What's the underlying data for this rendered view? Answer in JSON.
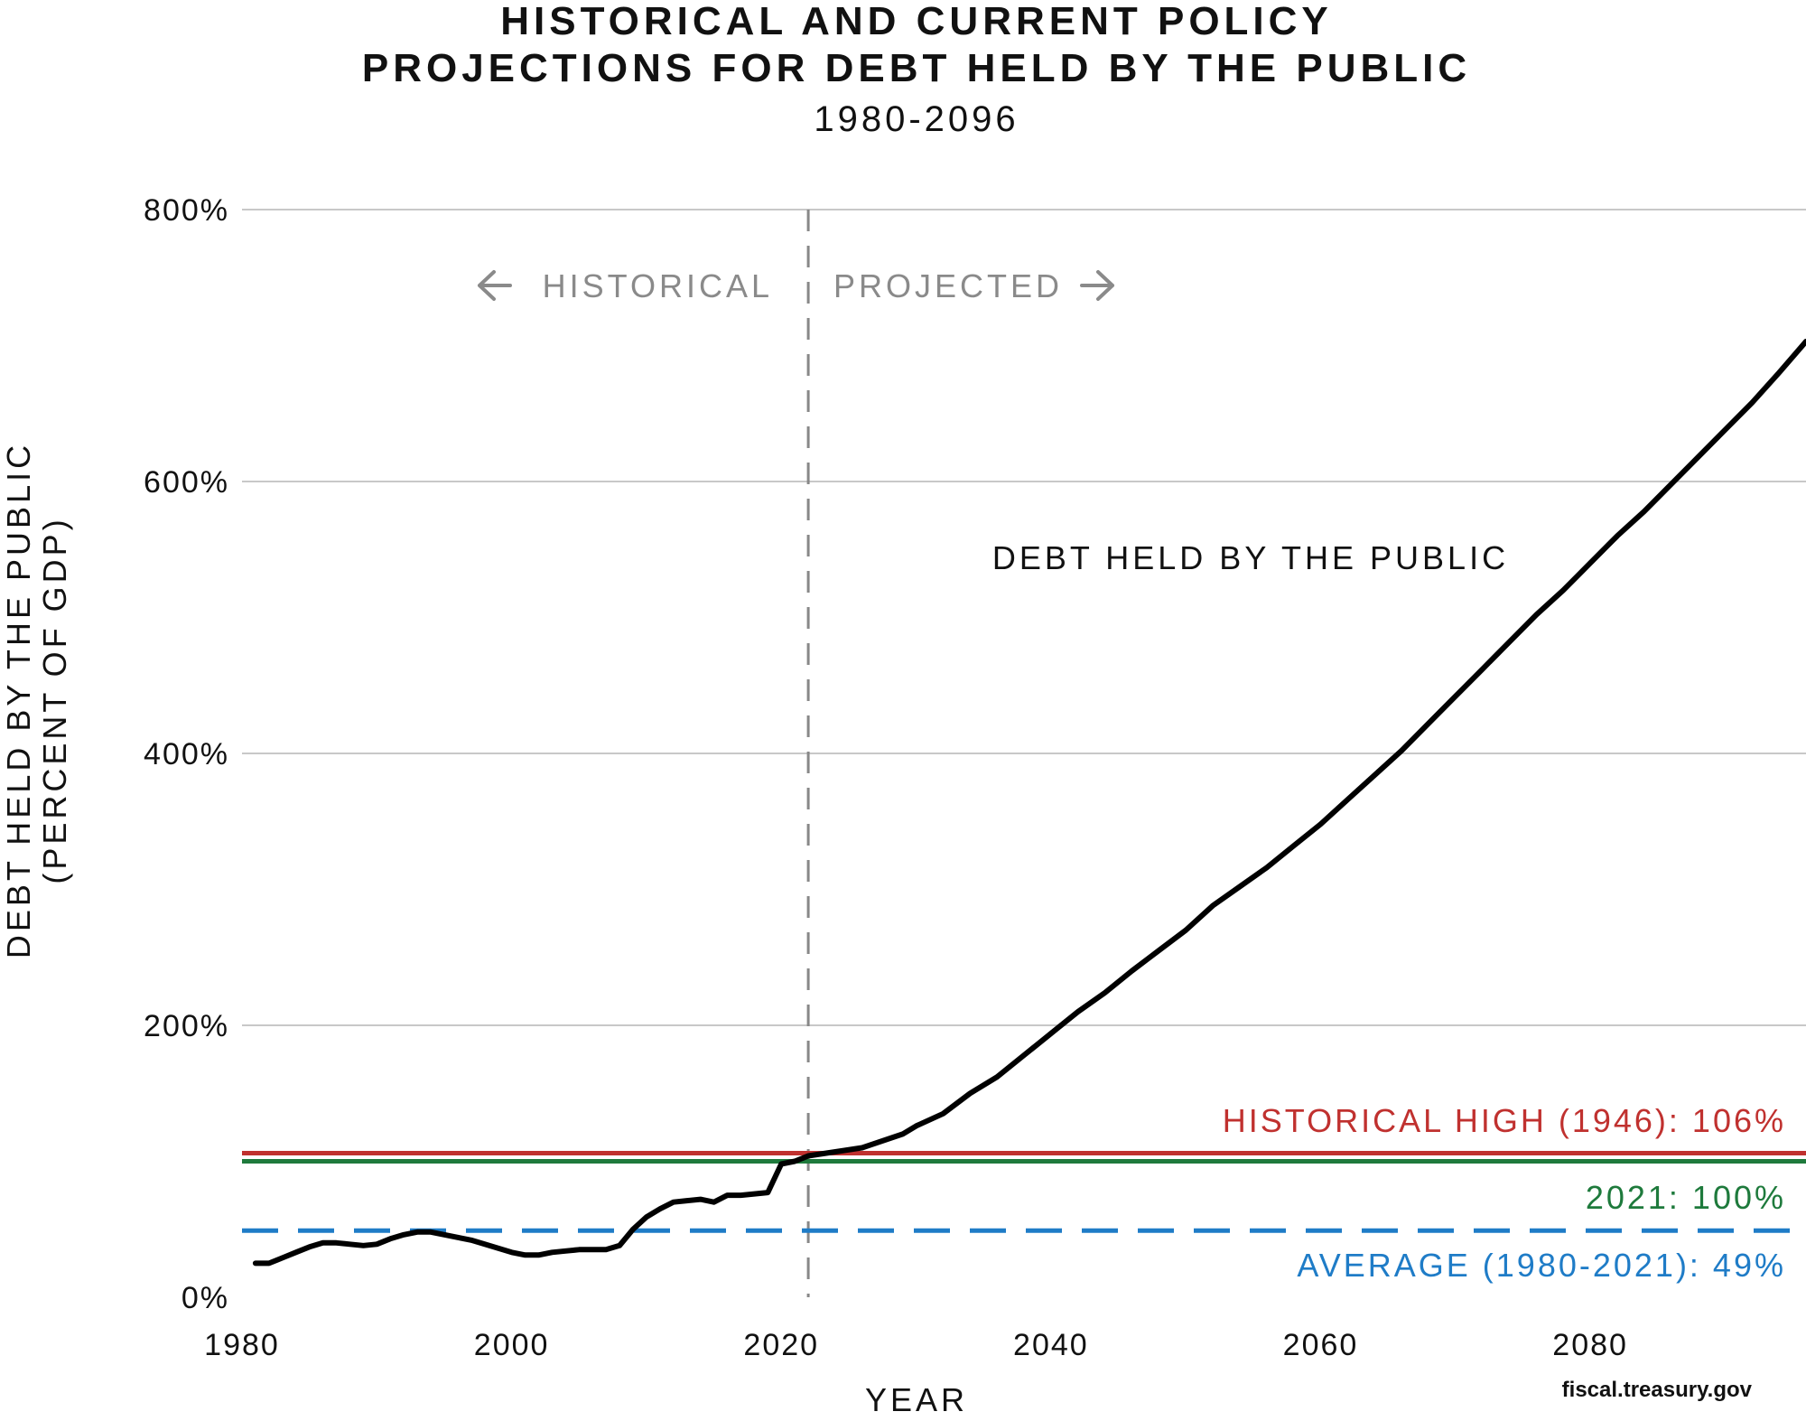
{
  "chart_data": {
    "type": "line",
    "title_line1": "HISTORICAL AND CURRENT POLICY",
    "title_line2": "PROJECTIONS FOR DEBT HELD BY THE PUBLIC",
    "subtitle": "1980-2096",
    "ylabel_line1": "DEBT HELD BY THE PUBLIC",
    "ylabel_line2": "(PERCENT OF GDP)",
    "xlabel": "YEAR",
    "xlim": [
      1980,
      2096
    ],
    "ylim": [
      0,
      800
    ],
    "x_ticks": [
      1980,
      2000,
      2020,
      2040,
      2060,
      2080
    ],
    "y_ticks": [
      {
        "value": 0,
        "label": "0%"
      },
      {
        "value": 200,
        "label": "200%"
      },
      {
        "value": 400,
        "label": "400%"
      },
      {
        "value": 600,
        "label": "600%"
      },
      {
        "value": 800,
        "label": "800%"
      }
    ],
    "grid": true,
    "divider": {
      "x": 2022,
      "left_label": "HISTORICAL",
      "right_label": "PROJECTED",
      "color": "#888888"
    },
    "series": [
      {
        "name": "DEBT HELD BY THE PUBLIC",
        "color": "#000000",
        "points": [
          [
            1981,
            25
          ],
          [
            1982,
            25
          ],
          [
            1983,
            29
          ],
          [
            1984,
            33
          ],
          [
            1985,
            37
          ],
          [
            1986,
            40
          ],
          [
            1987,
            40
          ],
          [
            1988,
            39
          ],
          [
            1989,
            38
          ],
          [
            1990,
            39
          ],
          [
            1991,
            43
          ],
          [
            1992,
            46
          ],
          [
            1993,
            48
          ],
          [
            1994,
            48
          ],
          [
            1995,
            46
          ],
          [
            1996,
            44
          ],
          [
            1997,
            42
          ],
          [
            1998,
            39
          ],
          [
            1999,
            36
          ],
          [
            2000,
            33
          ],
          [
            2001,
            31
          ],
          [
            2002,
            31
          ],
          [
            2003,
            33
          ],
          [
            2004,
            34
          ],
          [
            2005,
            35
          ],
          [
            2006,
            35
          ],
          [
            2007,
            35
          ],
          [
            2008,
            38
          ],
          [
            2009,
            50
          ],
          [
            2010,
            59
          ],
          [
            2011,
            65
          ],
          [
            2012,
            70
          ],
          [
            2013,
            71
          ],
          [
            2014,
            72
          ],
          [
            2015,
            70
          ],
          [
            2016,
            75
          ],
          [
            2017,
            75
          ],
          [
            2018,
            76
          ],
          [
            2019,
            77
          ],
          [
            2020,
            98
          ],
          [
            2021,
            100
          ],
          [
            2022,
            104
          ],
          [
            2026,
            110
          ],
          [
            2029,
            120
          ],
          [
            2030,
            126
          ],
          [
            2032,
            135
          ],
          [
            2034,
            150
          ],
          [
            2036,
            162
          ],
          [
            2038,
            178
          ],
          [
            2040,
            194
          ],
          [
            2042,
            210
          ],
          [
            2044,
            224
          ],
          [
            2046,
            240
          ],
          [
            2048,
            255
          ],
          [
            2050,
            270
          ],
          [
            2052,
            288
          ],
          [
            2054,
            302
          ],
          [
            2056,
            316
          ],
          [
            2058,
            332
          ],
          [
            2060,
            348
          ],
          [
            2062,
            366
          ],
          [
            2064,
            384
          ],
          [
            2066,
            402
          ],
          [
            2068,
            422
          ],
          [
            2070,
            442
          ],
          [
            2072,
            462
          ],
          [
            2074,
            482
          ],
          [
            2076,
            502
          ],
          [
            2078,
            520
          ],
          [
            2080,
            540
          ],
          [
            2082,
            560
          ],
          [
            2084,
            578
          ],
          [
            2086,
            598
          ],
          [
            2088,
            618
          ],
          [
            2090,
            638
          ],
          [
            2092,
            658
          ],
          [
            2094,
            680
          ],
          [
            2096,
            703
          ]
        ]
      }
    ],
    "reference_lines": [
      {
        "label": "HISTORICAL HIGH (1946): 106%",
        "value": 106,
        "color": "#c0312f",
        "style": "solid"
      },
      {
        "label": "2021: 100%",
        "value": 100,
        "color": "#1e7a3c",
        "style": "solid"
      },
      {
        "label": "AVERAGE (1980-2021): 49%",
        "value": 49,
        "color": "#1f7cc7",
        "style": "dashed"
      }
    ]
  },
  "source": "fiscal.treasury.gov"
}
